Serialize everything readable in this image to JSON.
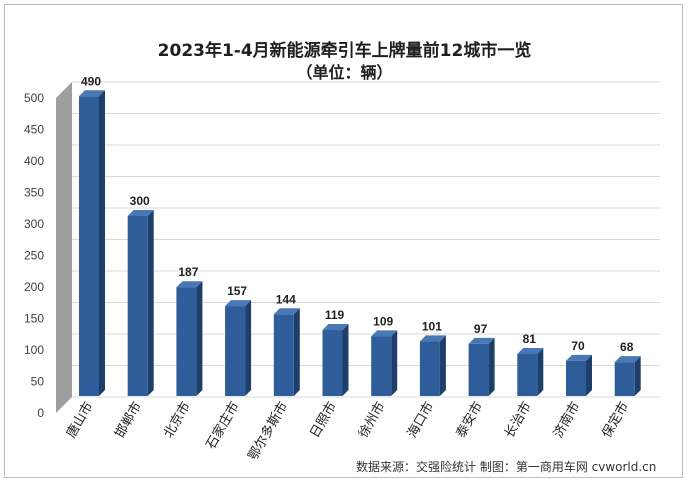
{
  "chart_data": {
    "type": "bar",
    "title": "2023年1-4月新能源牵引车上牌量前12城市一览",
    "subtitle": "（单位：辆）",
    "categories": [
      "唐山市",
      "邯郸市",
      "北京市",
      "石家庄市",
      "鄂尔多斯市",
      "日照市",
      "徐州市",
      "海口市",
      "泰安市",
      "长治市",
      "济南市",
      "保定市"
    ],
    "values": [
      490,
      300,
      187,
      157,
      144,
      119,
      109,
      101,
      97,
      81,
      70,
      68
    ],
    "ylim": [
      0,
      500
    ],
    "yticks": [
      0,
      50,
      100,
      150,
      200,
      250,
      300,
      350,
      400,
      450,
      500
    ],
    "grid": true,
    "legend": "none",
    "bar_color": "#2f5d99",
    "source": "数据来源：交强险统计 制图：第一商用车网 cvworld.cn"
  }
}
